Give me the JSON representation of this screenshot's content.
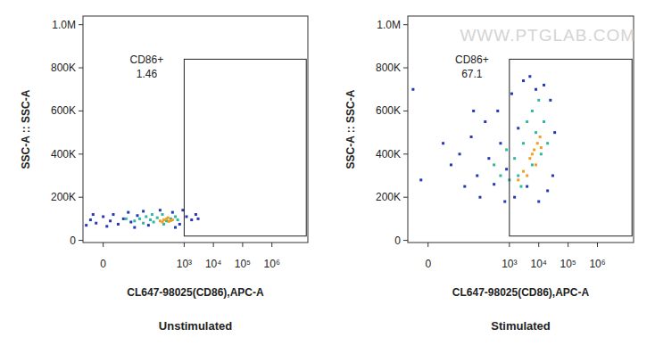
{
  "watermark": "WWW.PTGLAB.COM",
  "chart_data": [
    {
      "type": "scatter",
      "title": "Unstimulated",
      "x_label": "CL647-98025(CD86),APC-A",
      "y_label": "SSC-A :: SSC-A",
      "xlim": [
        -8,
        17000000
      ],
      "ylim": [
        -10000,
        1040000
      ],
      "xticks": [
        0,
        {
          "value": 1000,
          "label": "10³"
        },
        {
          "value": 10000,
          "label": "10⁴"
        },
        {
          "value": 100000,
          "label": "10⁵"
        },
        {
          "value": 1000000,
          "label": "10⁶"
        }
      ],
      "yticks": [
        0,
        {
          "value": 200000,
          "label": "200K"
        },
        {
          "value": 400000,
          "label": "400K"
        },
        {
          "value": 600000,
          "label": "600K"
        },
        {
          "value": 800000,
          "label": "800K"
        },
        {
          "value": 1000000,
          "label": "1.0M"
        }
      ],
      "gate": {
        "label": "CD86+",
        "value": 1.46,
        "x": [
          1000,
          15000000
        ],
        "y": [
          20000,
          840000
        ]
      },
      "series": [
        {
          "color": "#2438b8",
          "x": [
            -6,
            -4,
            -2,
            0,
            1,
            2,
            3,
            5,
            8,
            12,
            15,
            20,
            25,
            40,
            60,
            150,
            400,
            700,
            1200,
            1800,
            2500,
            3000,
            900,
            500,
            -3
          ],
          "values": [
            70000,
            95000,
            80000,
            110000,
            65000,
            90000,
            120000,
            75000,
            100000,
            130000,
            85000,
            60000,
            115000,
            135000,
            70000,
            140000,
            130000,
            75000,
            110000,
            95000,
            120000,
            100000,
            140000,
            60000,
            120000
          ]
        },
        {
          "color": "#2fb8a0",
          "x": [
            20,
            30,
            40,
            50,
            70,
            90,
            120,
            180,
            250,
            350,
            500,
            600,
            10,
            80,
            200
          ],
          "values": [
            90000,
            100000,
            80000,
            110000,
            95000,
            85000,
            105000,
            120000,
            90000,
            100000,
            110000,
            95000,
            100000,
            120000,
            75000
          ]
        },
        {
          "color": "#f0a020",
          "x": [
            150,
            200,
            250,
            300,
            350,
            180,
            280,
            400
          ],
          "values": [
            90000,
            95000,
            100000,
            88000,
            92000,
            85000,
            105000,
            95000
          ]
        }
      ]
    },
    {
      "type": "scatter",
      "title": "Stimulated",
      "x_label": "CL647-98025(CD86),APC-A",
      "y_label": "SSC-A :: SSC-A",
      "xlim": [
        -8,
        17000000
      ],
      "ylim": [
        -10000,
        1040000
      ],
      "xticks": [
        0,
        {
          "value": 1000,
          "label": "10³"
        },
        {
          "value": 10000,
          "label": "10⁴"
        },
        {
          "value": 100000,
          "label": "10⁵"
        },
        {
          "value": 1000000,
          "label": "10⁶"
        }
      ],
      "yticks": [
        0,
        {
          "value": 200000,
          "label": "200K"
        },
        {
          "value": 400000,
          "label": "400K"
        },
        {
          "value": 600000,
          "label": "600K"
        },
        {
          "value": 800000,
          "label": "800K"
        },
        {
          "value": 1000000,
          "label": "1.0M"
        }
      ],
      "gate": {
        "label": "CD86+",
        "value": 67.1,
        "x": [
          1000,
          15000000
        ],
        "y": [
          20000,
          840000
        ]
      },
      "series": [
        {
          "color": "#2438b8",
          "x": [
            -5,
            -2,
            5,
            10,
            20,
            30,
            50,
            80,
            100,
            150,
            200,
            300,
            400,
            500,
            800,
            1200,
            2000,
            3000,
            5000,
            8000,
            15000,
            25000,
            35000,
            30000,
            20000,
            1500,
            700,
            4000,
            10000,
            60
          ],
          "values": [
            700000,
            280000,
            450000,
            350000,
            400000,
            250000,
            480000,
            300000,
            200000,
            550000,
            380000,
            260000,
            600000,
            450000,
            330000,
            680000,
            520000,
            740000,
            760000,
            700000,
            720000,
            650000,
            500000,
            300000,
            230000,
            200000,
            180000,
            250000,
            180000,
            600000
          ]
        },
        {
          "color": "#2fb8a0",
          "x": [
            300,
            500,
            800,
            1500,
            2000,
            3000,
            4000,
            6000,
            8000,
            10000,
            12000,
            15000,
            20000,
            6000,
            2500,
            1000
          ],
          "values": [
            350000,
            300000,
            420000,
            380000,
            300000,
            450000,
            550000,
            600000,
            500000,
            650000,
            400000,
            550000,
            450000,
            350000,
            250000,
            280000
          ]
        },
        {
          "color": "#f0a020",
          "x": [
            3000,
            5000,
            7000,
            9000,
            11000,
            4000,
            8000,
            6000,
            12000,
            2000
          ],
          "values": [
            320000,
            380000,
            420000,
            450000,
            480000,
            300000,
            350000,
            400000,
            430000,
            280000
          ]
        }
      ]
    }
  ]
}
